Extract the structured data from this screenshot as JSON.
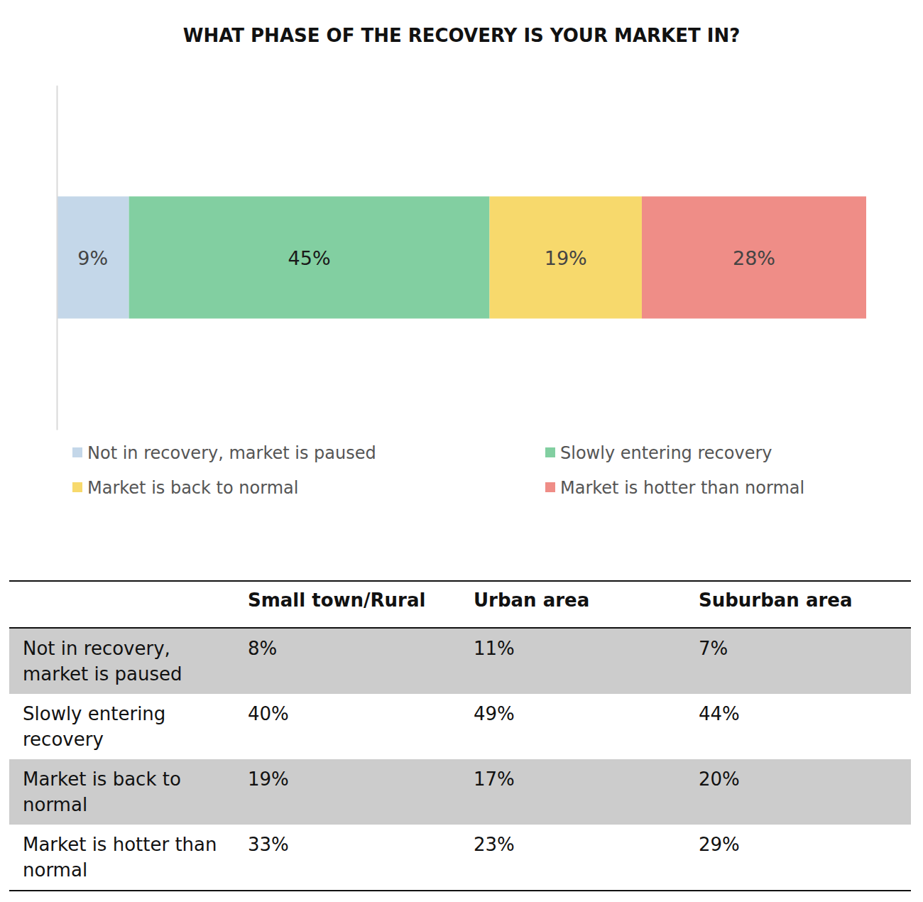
{
  "chart_data": {
    "type": "bar",
    "title": "WHAT PHASE OF THE RECOVERY IS YOUR MARKET IN?",
    "orientation": "horizontal",
    "stacked": true,
    "data_labels": true,
    "tick_labels": false,
    "legend": "bottom",
    "categories": [
      null
    ],
    "xlim": [
      0,
      101
    ],
    "series": [
      {
        "name": "Not in recovery, market is paused",
        "color": "#c4d7e9",
        "values": [
          9
        ],
        "value_labels": [
          "9%"
        ]
      },
      {
        "name": "Slowly entering recovery",
        "color": "#82cfa1",
        "values": [
          45
        ],
        "value_labels": [
          "45%"
        ]
      },
      {
        "name": "Market is back to normal",
        "color": "#f7d96c",
        "values": [
          19
        ],
        "value_labels": [
          "19%"
        ]
      },
      {
        "name": "Market is hotter than normal",
        "color": "#ef8d87",
        "values": [
          28
        ],
        "value_labels": [
          "28%"
        ]
      }
    ]
  },
  "table": {
    "columns": [
      "Small town/Rural",
      "Urban area",
      "Suburban area"
    ],
    "rows": [
      {
        "label": "Not in recovery, market is paused",
        "values": [
          "8%",
          "11%",
          "7%"
        ]
      },
      {
        "label": "Slowly entering recovery",
        "values": [
          "40%",
          "49%",
          "44%"
        ]
      },
      {
        "label": "Market is back to normal",
        "values": [
          "19%",
          "17%",
          "20%"
        ]
      },
      {
        "label": "Market is hotter than normal",
        "values": [
          "33%",
          "23%",
          "29%"
        ]
      }
    ]
  }
}
